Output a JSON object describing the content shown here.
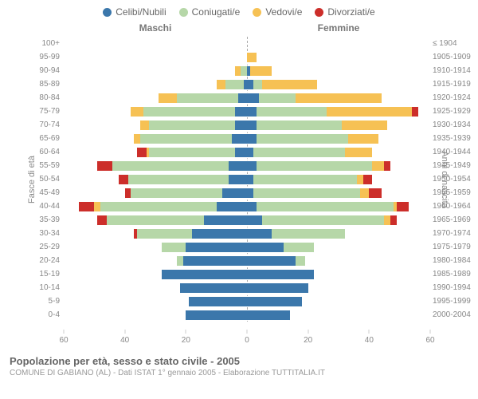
{
  "legend": {
    "items": [
      {
        "label": "Celibi/Nubili",
        "color": "#3b77ab"
      },
      {
        "label": "Coniugati/e",
        "color": "#b6d7a8"
      },
      {
        "label": "Vedovi/e",
        "color": "#f6c154"
      },
      {
        "label": "Divorziati/e",
        "color": "#cc2e2a"
      }
    ]
  },
  "headers": {
    "male": "Maschi",
    "female": "Femmine"
  },
  "ylabels": {
    "left": "Fasce di età",
    "right": "Anni di nascita"
  },
  "axis": {
    "max": 60,
    "ticks_left": [
      60,
      40,
      20,
      0
    ],
    "ticks_right": [
      0,
      20,
      40,
      60
    ]
  },
  "colors": {
    "single": "#3b77ab",
    "married": "#b6d7a8",
    "widowed": "#f6c154",
    "divorced": "#cc2e2a",
    "grid": "#aaaaaa",
    "text": "#666666"
  },
  "footer": {
    "title": "Popolazione per età, sesso e stato civile - 2005",
    "subtitle": "COMUNE DI GABIANO (AL) - Dati ISTAT 1° gennaio 2005 - Elaborazione TUTTITALIA.IT"
  },
  "rows": [
    {
      "age": "100+",
      "birth": "≤ 1904",
      "m": {
        "s": 0,
        "c": 0,
        "w": 0,
        "d": 0
      },
      "f": {
        "s": 0,
        "c": 0,
        "w": 0,
        "d": 0
      }
    },
    {
      "age": "95-99",
      "birth": "1905-1909",
      "m": {
        "s": 0,
        "c": 0,
        "w": 0,
        "d": 0
      },
      "f": {
        "s": 0,
        "c": 0,
        "w": 3,
        "d": 0
      }
    },
    {
      "age": "90-94",
      "birth": "1910-1914",
      "m": {
        "s": 0,
        "c": 2,
        "w": 2,
        "d": 0
      },
      "f": {
        "s": 1,
        "c": 0,
        "w": 7,
        "d": 0
      }
    },
    {
      "age": "85-89",
      "birth": "1915-1919",
      "m": {
        "s": 1,
        "c": 6,
        "w": 3,
        "d": 0
      },
      "f": {
        "s": 2,
        "c": 3,
        "w": 18,
        "d": 0
      }
    },
    {
      "age": "80-84",
      "birth": "1920-1924",
      "m": {
        "s": 3,
        "c": 20,
        "w": 6,
        "d": 0
      },
      "f": {
        "s": 4,
        "c": 12,
        "w": 28,
        "d": 0
      }
    },
    {
      "age": "75-79",
      "birth": "1925-1929",
      "m": {
        "s": 4,
        "c": 30,
        "w": 4,
        "d": 0
      },
      "f": {
        "s": 3,
        "c": 23,
        "w": 28,
        "d": 2
      }
    },
    {
      "age": "70-74",
      "birth": "1930-1934",
      "m": {
        "s": 4,
        "c": 28,
        "w": 3,
        "d": 0
      },
      "f": {
        "s": 3,
        "c": 28,
        "w": 15,
        "d": 0
      }
    },
    {
      "age": "65-69",
      "birth": "1935-1939",
      "m": {
        "s": 5,
        "c": 30,
        "w": 2,
        "d": 0
      },
      "f": {
        "s": 3,
        "c": 30,
        "w": 10,
        "d": 0
      }
    },
    {
      "age": "60-64",
      "birth": "1940-1944",
      "m": {
        "s": 4,
        "c": 28,
        "w": 1,
        "d": 3
      },
      "f": {
        "s": 2,
        "c": 30,
        "w": 9,
        "d": 0
      }
    },
    {
      "age": "55-59",
      "birth": "1945-1949",
      "m": {
        "s": 6,
        "c": 38,
        "w": 0,
        "d": 5
      },
      "f": {
        "s": 3,
        "c": 38,
        "w": 4,
        "d": 2
      }
    },
    {
      "age": "50-54",
      "birth": "1950-1954",
      "m": {
        "s": 6,
        "c": 33,
        "w": 0,
        "d": 3
      },
      "f": {
        "s": 2,
        "c": 34,
        "w": 2,
        "d": 3
      }
    },
    {
      "age": "45-49",
      "birth": "1955-1959",
      "m": {
        "s": 8,
        "c": 30,
        "w": 0,
        "d": 2
      },
      "f": {
        "s": 2,
        "c": 35,
        "w": 3,
        "d": 4
      }
    },
    {
      "age": "40-44",
      "birth": "1960-1964",
      "m": {
        "s": 10,
        "c": 38,
        "w": 2,
        "d": 5
      },
      "f": {
        "s": 3,
        "c": 45,
        "w": 1,
        "d": 4
      }
    },
    {
      "age": "35-39",
      "birth": "1965-1969",
      "m": {
        "s": 14,
        "c": 32,
        "w": 0,
        "d": 3
      },
      "f": {
        "s": 5,
        "c": 40,
        "w": 2,
        "d": 2
      }
    },
    {
      "age": "30-34",
      "birth": "1970-1974",
      "m": {
        "s": 18,
        "c": 18,
        "w": 0,
        "d": 1
      },
      "f": {
        "s": 8,
        "c": 24,
        "w": 0,
        "d": 0
      }
    },
    {
      "age": "25-29",
      "birth": "1975-1979",
      "m": {
        "s": 20,
        "c": 8,
        "w": 0,
        "d": 0
      },
      "f": {
        "s": 12,
        "c": 10,
        "w": 0,
        "d": 0
      }
    },
    {
      "age": "20-24",
      "birth": "1980-1984",
      "m": {
        "s": 21,
        "c": 2,
        "w": 0,
        "d": 0
      },
      "f": {
        "s": 16,
        "c": 3,
        "w": 0,
        "d": 0
      }
    },
    {
      "age": "15-19",
      "birth": "1985-1989",
      "m": {
        "s": 28,
        "c": 0,
        "w": 0,
        "d": 0
      },
      "f": {
        "s": 22,
        "c": 0,
        "w": 0,
        "d": 0
      }
    },
    {
      "age": "10-14",
      "birth": "1990-1994",
      "m": {
        "s": 22,
        "c": 0,
        "w": 0,
        "d": 0
      },
      "f": {
        "s": 20,
        "c": 0,
        "w": 0,
        "d": 0
      }
    },
    {
      "age": "5-9",
      "birth": "1995-1999",
      "m": {
        "s": 19,
        "c": 0,
        "w": 0,
        "d": 0
      },
      "f": {
        "s": 18,
        "c": 0,
        "w": 0,
        "d": 0
      }
    },
    {
      "age": "0-4",
      "birth": "2000-2004",
      "m": {
        "s": 20,
        "c": 0,
        "w": 0,
        "d": 0
      },
      "f": {
        "s": 14,
        "c": 0,
        "w": 0,
        "d": 0
      }
    }
  ]
}
